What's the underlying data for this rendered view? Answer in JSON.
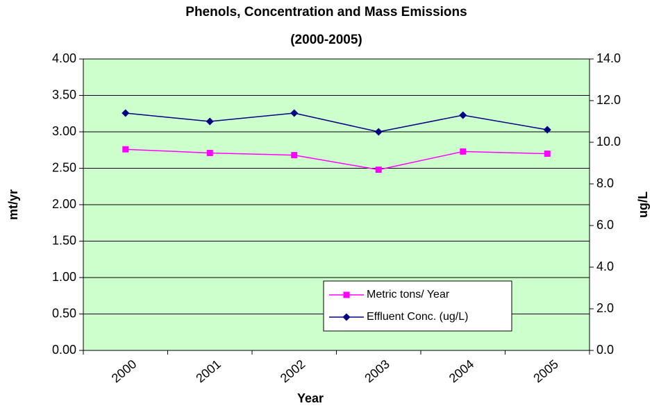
{
  "chart_data": {
    "type": "line",
    "title": "Phenols, Concentration and Mass Emissions",
    "subtitle": "(2000-2005)",
    "x_label": "Year",
    "y_label": "mt/yr",
    "y2_label": "ug/L",
    "categories": [
      "2000",
      "2001",
      "2002",
      "2003",
      "2004",
      "2005"
    ],
    "series": [
      {
        "name": "Metric tons/ Year",
        "color": "#ff00ff",
        "marker": "square",
        "values": [
          2.76,
          2.71,
          2.68,
          2.48,
          2.73,
          2.7
        ]
      },
      {
        "name": "Effluent Conc. (ug/L)",
        "color": "#000080",
        "marker": "diamond",
        "axis": "y2",
        "values": [
          11.4,
          11.0,
          11.4,
          10.5,
          11.3,
          10.6
        ]
      }
    ],
    "ylim": [
      0,
      4
    ],
    "yticks": [
      {
        "value": 0,
        "label": "0.00"
      },
      {
        "value": 0.5,
        "label": "0.50"
      },
      {
        "value": 1,
        "label": "1.00"
      },
      {
        "value": 1.5,
        "label": "1.50"
      },
      {
        "value": 2,
        "label": "2.00"
      },
      {
        "value": 2.5,
        "label": "2.50"
      },
      {
        "value": 3,
        "label": "3.00"
      },
      {
        "value": 3.5,
        "label": "3.50"
      },
      {
        "value": 4,
        "label": "4.00"
      }
    ],
    "y2lim": [
      0,
      14
    ],
    "y2ticks": [
      {
        "value": 0,
        "label": "0.0"
      },
      {
        "value": 2,
        "label": "2.0"
      },
      {
        "value": 4,
        "label": "4.0"
      },
      {
        "value": 6,
        "label": "6.0"
      },
      {
        "value": 8,
        "label": "8.0"
      },
      {
        "value": 10,
        "label": "10.0"
      },
      {
        "value": 12,
        "label": "12.0"
      },
      {
        "value": 14,
        "label": "14.0"
      }
    ],
    "grid": true,
    "plot_background": "#ccffcc",
    "legend": "lower right"
  }
}
